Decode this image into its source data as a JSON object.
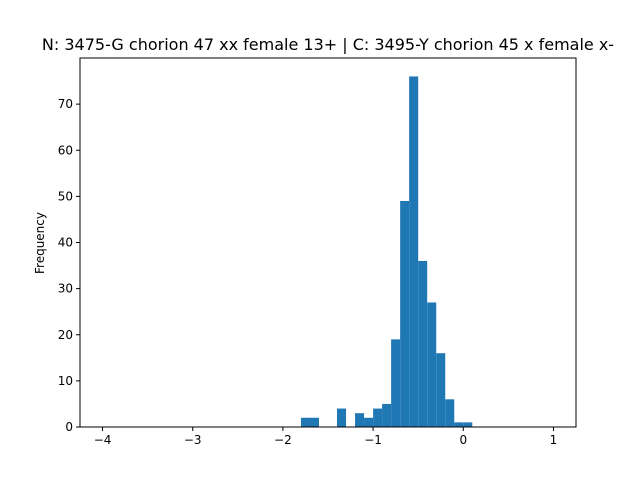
{
  "chart_data": {
    "type": "bar",
    "title": "N: 3475-G chorion 47 xx female 13+ | C: 3495-Y chorion 45 x female x-",
    "xlabel": "",
    "ylabel": "Frequency",
    "xlim": [
      -4.25,
      1.25
    ],
    "ylim": [
      0,
      80
    ],
    "x_ticks": [
      {
        "value": -4,
        "label": "−4"
      },
      {
        "value": -3,
        "label": "−3"
      },
      {
        "value": -2,
        "label": "−2"
      },
      {
        "value": -1,
        "label": "−1"
      },
      {
        "value": 0,
        "label": "0"
      },
      {
        "value": 1,
        "label": "1"
      }
    ],
    "y_ticks": [
      {
        "value": 0,
        "label": "0"
      },
      {
        "value": 10,
        "label": "10"
      },
      {
        "value": 20,
        "label": "20"
      },
      {
        "value": 30,
        "label": "30"
      },
      {
        "value": 40,
        "label": "40"
      },
      {
        "value": 50,
        "label": "50"
      },
      {
        "value": 60,
        "label": "60"
      },
      {
        "value": 70,
        "label": "70"
      }
    ],
    "bin_width": 0.1,
    "bins": [
      {
        "start": -1.8,
        "count": 2
      },
      {
        "start": -1.7,
        "count": 2
      },
      {
        "start": -1.4,
        "count": 4
      },
      {
        "start": -1.2,
        "count": 3
      },
      {
        "start": -1.1,
        "count": 2
      },
      {
        "start": -1.0,
        "count": 4
      },
      {
        "start": -0.9,
        "count": 5
      },
      {
        "start": -0.8,
        "count": 19
      },
      {
        "start": -0.7,
        "count": 49
      },
      {
        "start": -0.6,
        "count": 76
      },
      {
        "start": -0.5,
        "count": 36
      },
      {
        "start": -0.4,
        "count": 27
      },
      {
        "start": -0.3,
        "count": 16
      },
      {
        "start": -0.2,
        "count": 6
      },
      {
        "start": -0.1,
        "count": 1
      },
      {
        "start": 0.0,
        "count": 1
      }
    ],
    "grid": false,
    "colors": {
      "bar": "#1f77b4",
      "axes": "#000000",
      "background": "#ffffff"
    }
  }
}
